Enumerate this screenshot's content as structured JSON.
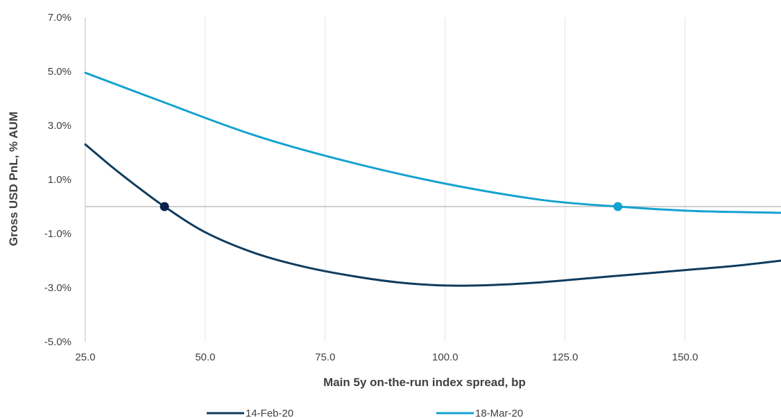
{
  "chart_data": {
    "type": "line",
    "title": "",
    "xlabel": "Main 5y on-the-run index spread, bp",
    "ylabel": "Gross USD PnL, % AUM",
    "xlim": [
      25,
      170
    ],
    "ylim": [
      -5,
      7
    ],
    "x_ticks": [
      "25.0",
      "50.0",
      "75.0",
      "100.0",
      "125.0",
      "150.0"
    ],
    "y_ticks": [
      "7.0%",
      "5.0%",
      "3.0%",
      "1.0%",
      "-1.0%",
      "-3.0%",
      "-5.0%"
    ],
    "grid": "vertical",
    "zero_line": true,
    "legend": "bottom",
    "series": [
      {
        "name": "14-Feb-20",
        "color": "#0d3b5e",
        "x": [
          25,
          30,
          35,
          41.5,
          50,
          60,
          70,
          80,
          90,
          100,
          110,
          120,
          130,
          140,
          150,
          160,
          170
        ],
        "y": [
          2.3,
          1.55,
          0.85,
          0.0,
          -0.95,
          -1.7,
          -2.2,
          -2.55,
          -2.8,
          -2.92,
          -2.9,
          -2.8,
          -2.65,
          -2.5,
          -2.35,
          -2.2,
          -2.0
        ],
        "markers": [
          {
            "x": 41.5,
            "y": 0.0,
            "color": "#0b1f4d"
          }
        ]
      },
      {
        "name": "18-Mar-20",
        "color": "#13a2cf",
        "x": [
          25,
          40,
          60,
          80,
          100,
          120,
          136,
          150,
          160,
          170
        ],
        "y": [
          4.95,
          3.95,
          2.65,
          1.65,
          0.85,
          0.25,
          0.0,
          -0.15,
          -0.2,
          -0.23
        ],
        "markers": [
          {
            "x": 136,
            "y": 0.0,
            "color": "#13a2cf"
          }
        ]
      }
    ]
  }
}
